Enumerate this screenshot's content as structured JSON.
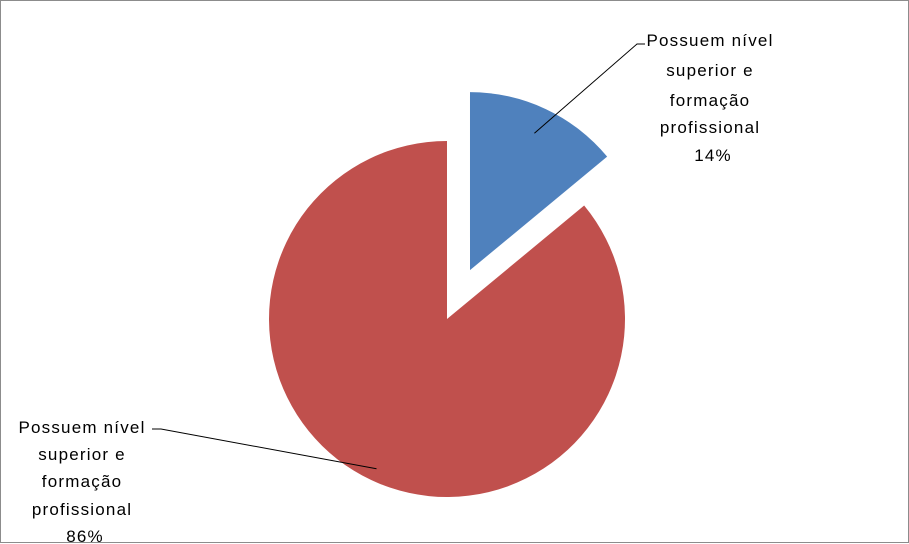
{
  "chart_data": {
    "type": "pie",
    "title": "",
    "slices": [
      {
        "label_lines": [
          "Possuem nível",
          "superior e",
          "formação",
          "profissional"
        ],
        "percent_label": "14%",
        "value": 14,
        "color": "#4f81bd"
      },
      {
        "label_lines": [
          "Possuem nível",
          "superior e",
          "formação",
          "profissional"
        ],
        "percent_label": "86%",
        "value": 86,
        "color": "#c0504d"
      }
    ],
    "exploded_slice_index": 0,
    "legend": "none"
  }
}
